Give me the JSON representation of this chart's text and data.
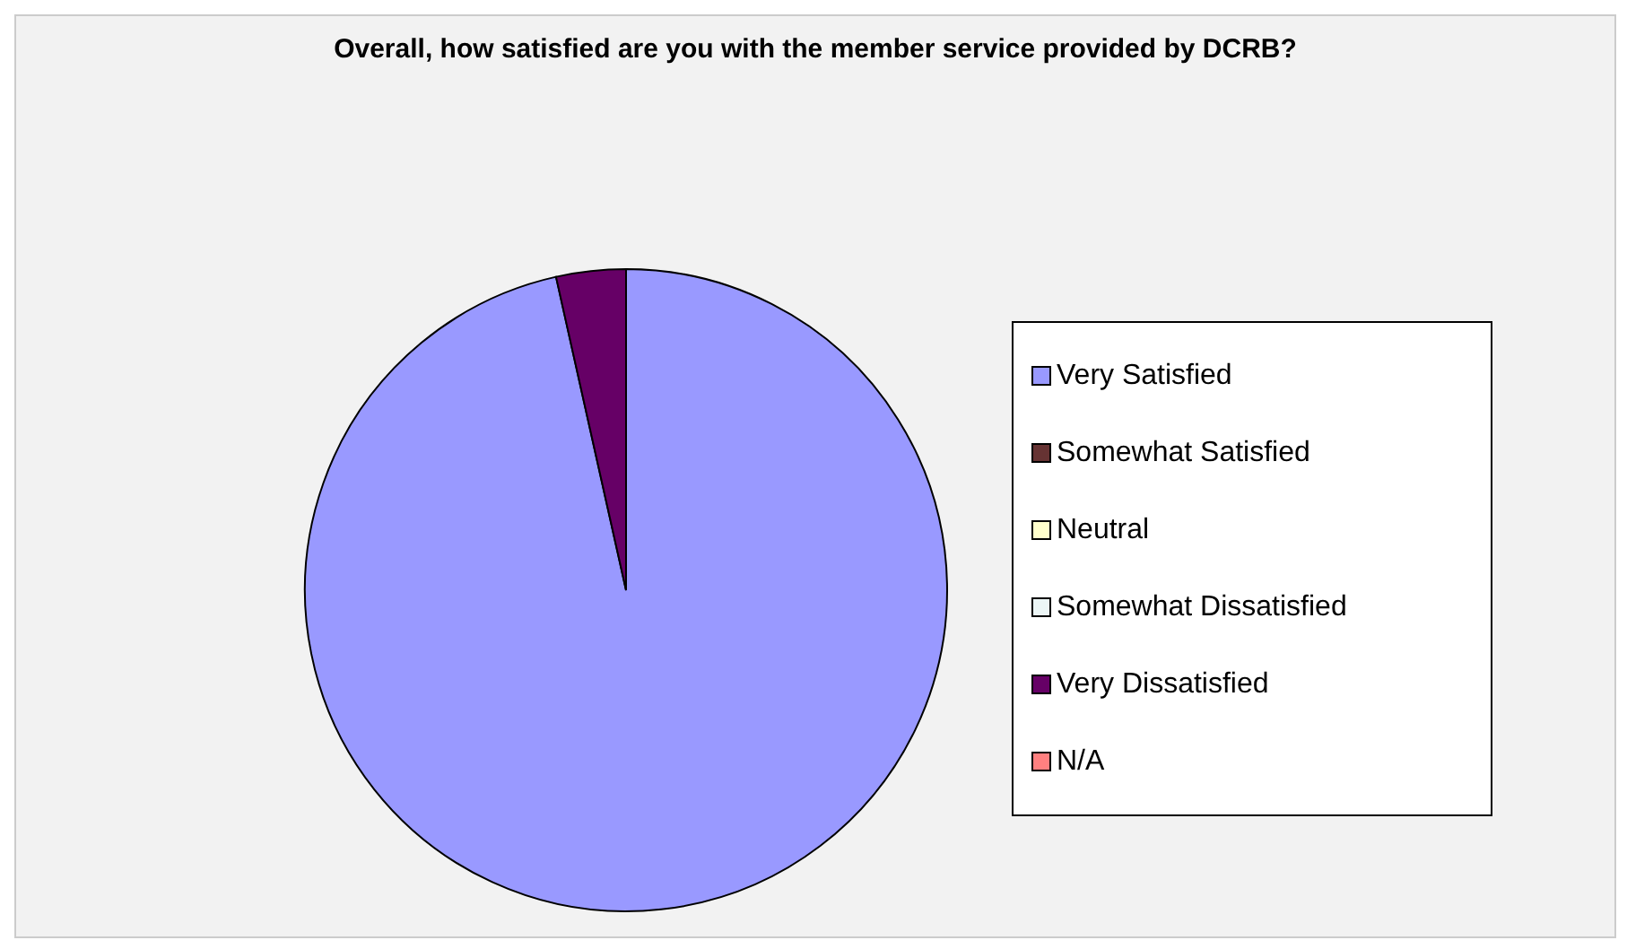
{
  "chart_data": {
    "type": "pie",
    "title": "Overall, how satisfied are you with the member service provided by DCRB?",
    "categories": [
      "Very Satisfied",
      "Somewhat Satisfied",
      "Neutral",
      "Somewhat Dissatisfied",
      "Very Dissatisfied",
      "N/A"
    ],
    "values": [
      96.5,
      0,
      0,
      0,
      3.5,
      0
    ],
    "colors": [
      "#9999ff",
      "#663333",
      "#ffffcc",
      "#ecf6f6",
      "#660066",
      "#ff8080"
    ],
    "legend": "right"
  }
}
